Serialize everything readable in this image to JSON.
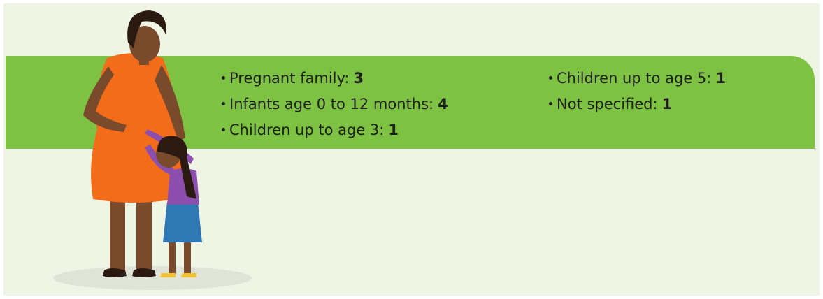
{
  "items": [
    {
      "label": "Pregnant family:",
      "value": 3
    },
    {
      "label": "Infants age 0 to 12 months:",
      "value": 4
    },
    {
      "label": "Children up to age 3:",
      "value": 1
    },
    {
      "label": "Children up to age 5:",
      "value": 1
    },
    {
      "label": "Not specified:",
      "value": 1
    }
  ]
}
